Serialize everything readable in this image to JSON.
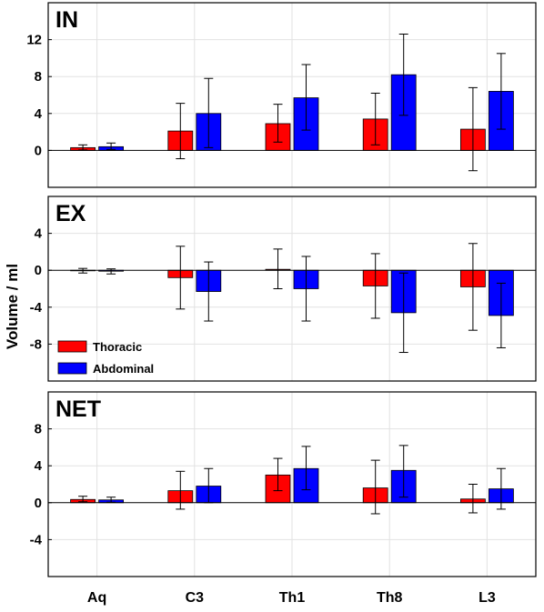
{
  "chart_data": {
    "type": "bar",
    "ylabel": "Volume / ml",
    "categories": [
      "Aq",
      "C3",
      "Th1",
      "Th8",
      "L3"
    ],
    "grid": true,
    "legend_position": "inside middle panel, left",
    "colors": {
      "Thoracic": "#ff0000",
      "Abdominal": "#0000ff"
    },
    "panels": [
      {
        "title": "IN",
        "ylim": [
          -4,
          16
        ],
        "yticks": [
          0,
          4,
          8,
          12
        ],
        "series": [
          {
            "name": "Thoracic",
            "values": [
              0.3,
              2.1,
              2.9,
              3.4,
              2.3
            ],
            "err_low": [
              0.05,
              -0.9,
              0.9,
              0.6,
              -2.2
            ],
            "err_high": [
              0.6,
              5.1,
              5.0,
              6.2,
              6.8
            ]
          },
          {
            "name": "Abdominal",
            "values": [
              0.4,
              4.0,
              5.7,
              8.2,
              6.4
            ],
            "err_low": [
              0.1,
              0.3,
              2.2,
              3.8,
              2.3
            ],
            "err_high": [
              0.8,
              7.8,
              9.3,
              12.6,
              10.5
            ]
          }
        ]
      },
      {
        "title": "EX",
        "ylim": [
          -12,
          8
        ],
        "yticks": [
          -8,
          -4,
          0,
          4
        ],
        "series": [
          {
            "name": "Thoracic",
            "values": [
              -0.05,
              -0.8,
              0.1,
              -1.7,
              -1.8
            ],
            "err_low": [
              -0.3,
              -4.2,
              -2.0,
              -5.2,
              -6.5
            ],
            "err_high": [
              0.2,
              2.6,
              2.3,
              1.8,
              2.9
            ]
          },
          {
            "name": "Abdominal",
            "values": [
              -0.1,
              -2.3,
              -2.0,
              -4.6,
              -4.9
            ],
            "err_low": [
              -0.4,
              -5.5,
              -5.5,
              -8.9,
              -8.4
            ],
            "err_high": [
              0.15,
              0.9,
              1.5,
              -0.3,
              -1.4
            ]
          }
        ]
      },
      {
        "title": "NET",
        "ylim": [
          -8,
          12
        ],
        "yticks": [
          -4,
          0,
          4,
          8
        ],
        "series": [
          {
            "name": "Thoracic",
            "values": [
              0.35,
              1.3,
              3.0,
              1.6,
              0.4
            ],
            "err_low": [
              0.1,
              -0.7,
              1.3,
              -1.2,
              -1.1
            ],
            "err_high": [
              0.7,
              3.4,
              4.8,
              4.6,
              2.0
            ]
          },
          {
            "name": "Abdominal",
            "values": [
              0.3,
              1.8,
              3.7,
              3.5,
              1.5
            ],
            "err_low": [
              0.05,
              0.0,
              1.4,
              0.6,
              -0.7
            ],
            "err_high": [
              0.6,
              3.7,
              6.1,
              6.2,
              3.7
            ]
          }
        ]
      }
    ]
  }
}
